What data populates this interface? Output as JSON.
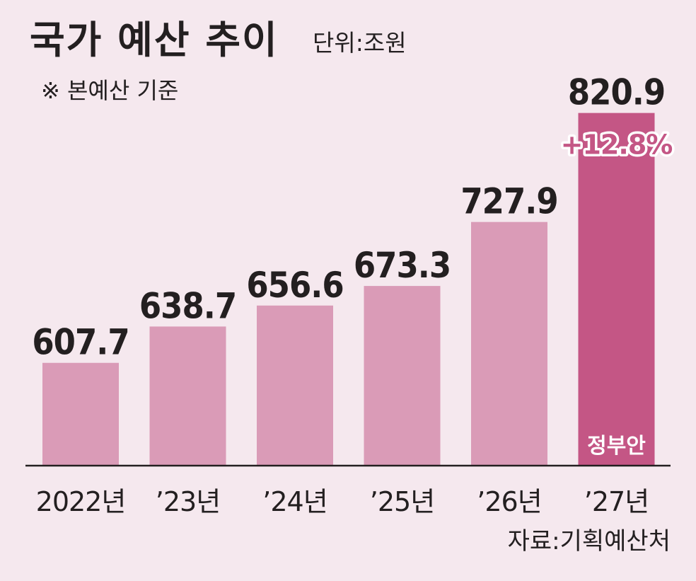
{
  "title": "국가 예산 추이",
  "unit": "단위:조원",
  "note": "※ 본예산 기준",
  "source": "자료:기획예산처",
  "colors": {
    "background": "#f5e8ee",
    "bar": "#da9bb7",
    "bar_highlight": "#c45685",
    "text": "#231f20",
    "growth_fill": "#c45685",
    "growth_stroke": "#ffffff"
  },
  "chart_data": {
    "type": "bar",
    "title": "국가 예산 추이",
    "xlabel": "",
    "ylabel": "",
    "unit": "단위:조원",
    "categories": [
      "2022년",
      "’23년",
      "’24년",
      "’25년",
      "’26년",
      "’27년"
    ],
    "values": [
      607.7,
      638.7,
      656.6,
      673.3,
      727.9,
      820.9
    ],
    "value_labels": [
      "607.7",
      "638.7",
      "656.6",
      "673.3",
      "727.9",
      "820.9"
    ],
    "highlight_index": 5,
    "highlight_label": "정부안",
    "growth_label": "+12.8%",
    "ylim": [
      520,
      840
    ],
    "grid": false,
    "legend": "none"
  }
}
